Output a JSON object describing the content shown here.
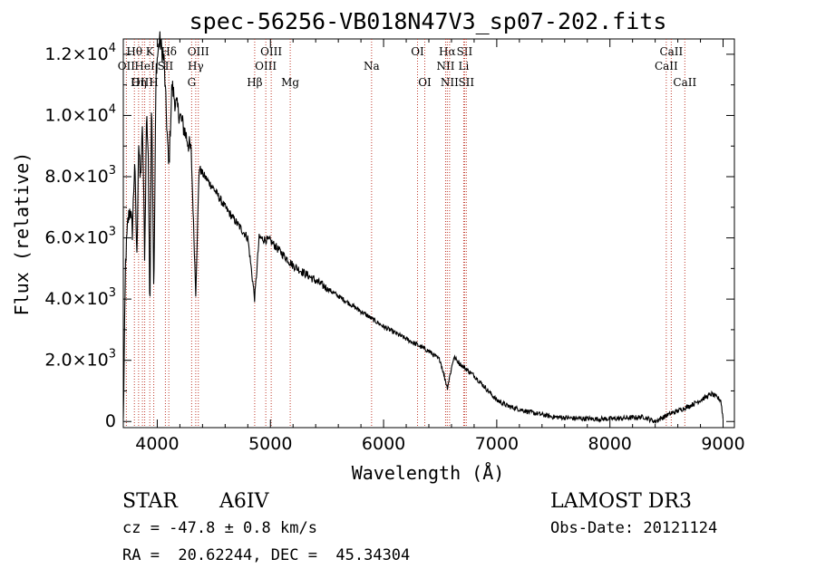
{
  "chart_data": {
    "type": "line",
    "title": "spec-56256-VB018N47V3_sp07-202.fits",
    "xlabel": "Wavelength (Å)",
    "ylabel": "Flux (relative)",
    "xlim": [
      3700,
      9100
    ],
    "ylim": [
      -200,
      12500
    ],
    "x_ticks": [
      4000,
      5000,
      6000,
      7000,
      8000,
      9000
    ],
    "y_ticks": [
      {
        "value": 0,
        "mantissa": "0",
        "exp": ""
      },
      {
        "value": 2000,
        "mantissa": "2.0×10",
        "exp": "3"
      },
      {
        "value": 4000,
        "mantissa": "4.0×10",
        "exp": "3"
      },
      {
        "value": 6000,
        "mantissa": "6.0×10",
        "exp": "3"
      },
      {
        "value": 8000,
        "mantissa": "8.0×10",
        "exp": "3"
      },
      {
        "value": 10000,
        "mantissa": "1.0×10",
        "exp": "4"
      },
      {
        "value": 12000,
        "mantissa": "1.2×10",
        "exp": "4"
      }
    ],
    "spectrum_anchors": {
      "wavelength": [
        3700,
        3720,
        3740,
        3760,
        3780,
        3800,
        3820,
        3835,
        3850,
        3870,
        3889,
        3905,
        3920,
        3934,
        3950,
        3970,
        3990,
        4020,
        4060,
        4102,
        4130,
        4160,
        4200,
        4250,
        4300,
        4340,
        4370,
        4400,
        4500,
        4600,
        4700,
        4800,
        4861,
        4900,
        5000,
        5100,
        5200,
        5400,
        5600,
        5800,
        6000,
        6200,
        6400,
        6500,
        6563,
        6620,
        6700,
        6800,
        6900,
        7000,
        7100,
        7300,
        7500,
        7700,
        7900,
        8100,
        8300,
        8400,
        8500,
        8700,
        8800,
        8900,
        8980,
        9000
      ],
      "flux": [
        0,
        5200,
        6500,
        7000,
        6200,
        8500,
        5300,
        9200,
        7800,
        9600,
        5300,
        10100,
        8800,
        3500,
        10900,
        4000,
        11500,
        12500,
        11800,
        8200,
        11000,
        10400,
        10000,
        9400,
        8800,
        4200,
        8300,
        8100,
        7600,
        7000,
        6500,
        6000,
        4000,
        6000,
        5900,
        5500,
        5100,
        4600,
        4100,
        3600,
        3100,
        2700,
        2300,
        2000,
        1100,
        2100,
        1800,
        1500,
        1100,
        700,
        500,
        300,
        150,
        100,
        80,
        100,
        150,
        0,
        200,
        500,
        700,
        900,
        700,
        100
      ]
    },
    "spectral_lines": [
      {
        "label": "Hθ",
        "wavelength": 3798,
        "row": 1
      },
      {
        "label": "OII",
        "wavelength": 3727,
        "row": 2
      },
      {
        "label": "OIII",
        "wavelength": 3869,
        "row": 3
      },
      {
        "label": "Hη",
        "wavelength": 3835,
        "row": 3
      },
      {
        "label": "K",
        "wavelength": 3934,
        "row": 1
      },
      {
        "label": "HeI",
        "wavelength": 3889,
        "row": 2
      },
      {
        "label": "H",
        "wavelength": 3969,
        "row": 3
      },
      {
        "label": "SII",
        "wavelength": 4072,
        "row": 2
      },
      {
        "label": "Hδ",
        "wavelength": 4102,
        "row": 1
      },
      {
        "label": "OIII",
        "wavelength": 4363,
        "row": 1
      },
      {
        "label": "Hγ",
        "wavelength": 4340,
        "row": 2
      },
      {
        "label": "G",
        "wavelength": 4304,
        "row": 3
      },
      {
        "label": "Hβ",
        "wavelength": 4861,
        "row": 3
      },
      {
        "label": "OIII",
        "wavelength": 4959,
        "row": 2
      },
      {
        "label": "OIII",
        "wavelength": 5007,
        "row": 1
      },
      {
        "label": "Mg",
        "wavelength": 5175,
        "row": 3
      },
      {
        "label": "Na",
        "wavelength": 5894,
        "row": 2
      },
      {
        "label": "OI",
        "wavelength": 6300,
        "row": 1
      },
      {
        "label": "OI",
        "wavelength": 6364,
        "row": 3
      },
      {
        "label": "Hα",
        "wavelength": 6563,
        "row": 1
      },
      {
        "label": "NII",
        "wavelength": 6548,
        "row": 2
      },
      {
        "label": "NII",
        "wavelength": 6583,
        "row": 3
      },
      {
        "label": "SII",
        "wavelength": 6716,
        "row": 1
      },
      {
        "label": "Li",
        "wavelength": 6708,
        "row": 2
      },
      {
        "label": "SII",
        "wavelength": 6731,
        "row": 3
      },
      {
        "label": "CaII",
        "wavelength": 8542,
        "row": 1
      },
      {
        "label": "CaII",
        "wavelength": 8498,
        "row": 2
      },
      {
        "label": "CaII",
        "wavelength": 8662,
        "row": 3
      }
    ]
  },
  "info": {
    "object_type": "STAR",
    "subclass": "A6IV",
    "survey": "LAMOST DR3",
    "redshift_line": "cz = -47.8 ± 0.8 km/s",
    "obs_date": "Obs-Date: 20121124",
    "coords": "RA =  20.62244, DEC =  45.34304"
  }
}
